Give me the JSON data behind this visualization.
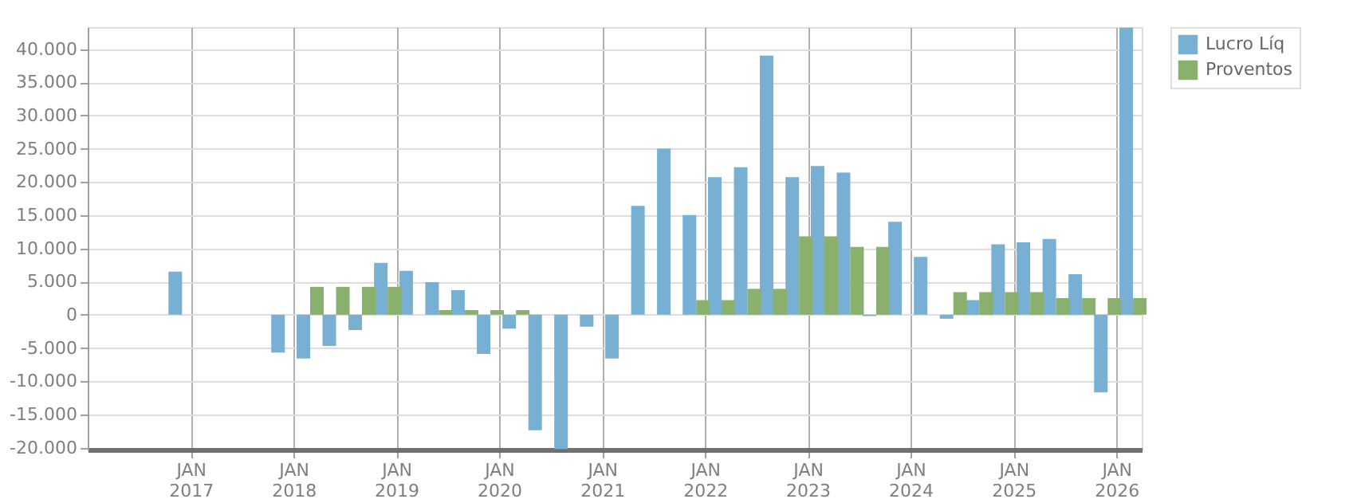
{
  "chart_data": {
    "type": "bar",
    "x": [
      "2016-12",
      "2017-12",
      "2018-03",
      "2018-06",
      "2018-09",
      "2018-12",
      "2019-03",
      "2019-06",
      "2019-09",
      "2019-12",
      "2020-03",
      "2020-06",
      "2020-09",
      "2020-12",
      "2021-03",
      "2021-06",
      "2021-09",
      "2021-12",
      "2022-03",
      "2022-06",
      "2022-09",
      "2022-12",
      "2023-03",
      "2023-06",
      "2023-09",
      "2023-12",
      "2024-03",
      "2024-06",
      "2024-09",
      "2024-12",
      "2025-03",
      "2025-06",
      "2025-09",
      "2025-12",
      "2026-03"
    ],
    "series": [
      {
        "name": "Lucro Líq",
        "color": "#77b0d3",
        "values": [
          6500,
          -5700,
          -6600,
          -4700,
          -2300,
          7800,
          6600,
          4900,
          3700,
          -5900,
          -2100,
          -17400,
          -20200,
          -1800,
          -6600,
          16400,
          25000,
          15000,
          20700,
          22200,
          39000,
          20700,
          22400,
          21400,
          -200,
          14000,
          8700,
          -600,
          2200,
          10600,
          10900,
          11400,
          6100,
          -11700,
          43200
        ]
      },
      {
        "name": "Proventos",
        "color": "#89b06c",
        "values": [
          0,
          0,
          4200,
          4200,
          4200,
          4200,
          0,
          700,
          700,
          700,
          700,
          0,
          0,
          0,
          0,
          0,
          0,
          2200,
          2200,
          3900,
          3900,
          11800,
          11800,
          10200,
          10200,
          0,
          0,
          3400,
          3400,
          3400,
          3400,
          2500,
          2500,
          2500,
          2500
        ]
      }
    ],
    "xlim": [
      "2016-01",
      "2026-04"
    ],
    "xticks": [
      {
        "value": "2017-01",
        "label": "JAN 2017"
      },
      {
        "value": "2018-01",
        "label": "JAN 2018"
      },
      {
        "value": "2019-01",
        "label": "JAN 2019"
      },
      {
        "value": "2020-01",
        "label": "JAN 2020"
      },
      {
        "value": "2021-01",
        "label": "JAN 2021"
      },
      {
        "value": "2022-01",
        "label": "JAN 2022"
      },
      {
        "value": "2023-01",
        "label": "JAN 2023"
      },
      {
        "value": "2024-01",
        "label": "JAN 2024"
      },
      {
        "value": "2025-01",
        "label": "JAN 2025"
      },
      {
        "value": "2026-01",
        "label": "JAN 2026"
      }
    ],
    "ylim": [
      -20300,
      43300
    ],
    "yticks": [
      {
        "value": -20000,
        "label": "-20.000"
      },
      {
        "value": -15000,
        "label": "-15.000"
      },
      {
        "value": -10000,
        "label": "-10.000"
      },
      {
        "value": -5000,
        "label": "-5.000"
      },
      {
        "value": 0,
        "label": "0"
      },
      {
        "value": 5000,
        "label": "5.000"
      },
      {
        "value": 10000,
        "label": "10.000"
      },
      {
        "value": 15000,
        "label": "15.000"
      },
      {
        "value": 20000,
        "label": "20.000"
      },
      {
        "value": 25000,
        "label": "25.000"
      },
      {
        "value": 30000,
        "label": "30.000"
      },
      {
        "value": 35000,
        "label": "35.000"
      },
      {
        "value": 40000,
        "label": "40.000"
      }
    ],
    "grid": true,
    "legend": "top right"
  }
}
